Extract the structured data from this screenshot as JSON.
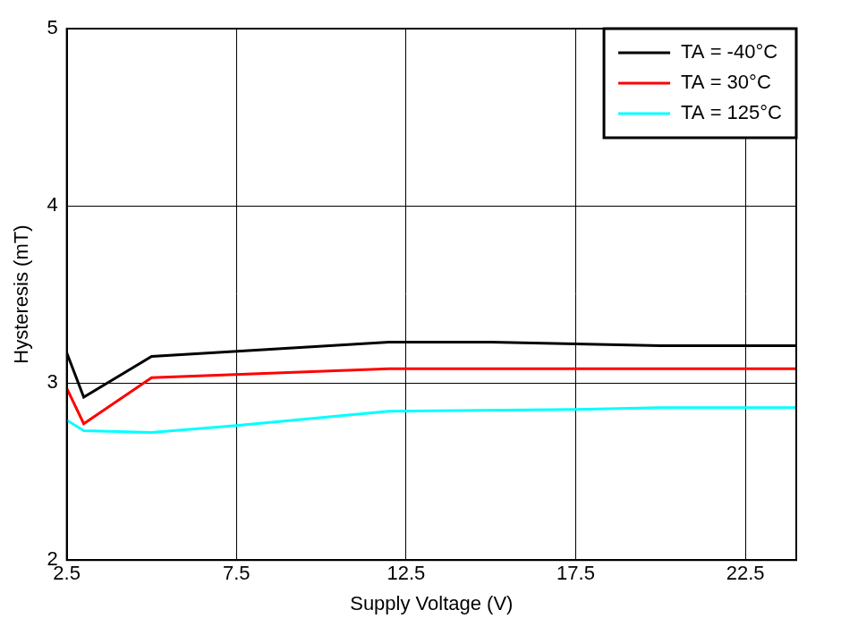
{
  "chart_data": {
    "type": "line",
    "x_label": "Supply Voltage (V)",
    "y_label": "Hysteresis (mT)",
    "xlim": [
      2.5,
      24
    ],
    "xticks": [
      2.5,
      7.5,
      12.5,
      17.5,
      22.5
    ],
    "ylim": [
      2,
      5
    ],
    "yticks": [
      2,
      3,
      4,
      5
    ],
    "grid": true,
    "legend": "upper right",
    "series": [
      {
        "name": "TA = -40°C",
        "color": "#000000",
        "x": [
          2.5,
          3,
          5,
          12,
          15,
          17.5,
          20,
          24
        ],
        "values": [
          3.17,
          2.92,
          3.15,
          3.23,
          3.23,
          3.22,
          3.21,
          3.21
        ]
      },
      {
        "name": "TA = 30°C",
        "color": "#ff0000",
        "x": [
          2.5,
          3,
          5,
          12,
          15,
          17.5,
          20,
          24
        ],
        "values": [
          2.97,
          2.77,
          3.03,
          3.08,
          3.08,
          3.08,
          3.08,
          3.08
        ]
      },
      {
        "name": "TA = 125°C",
        "color": "#00ffff",
        "x": [
          2.5,
          3,
          5,
          7.5,
          12,
          17.5,
          20,
          24
        ],
        "values": [
          2.79,
          2.73,
          2.72,
          2.76,
          2.84,
          2.85,
          2.86,
          2.86
        ]
      }
    ]
  }
}
